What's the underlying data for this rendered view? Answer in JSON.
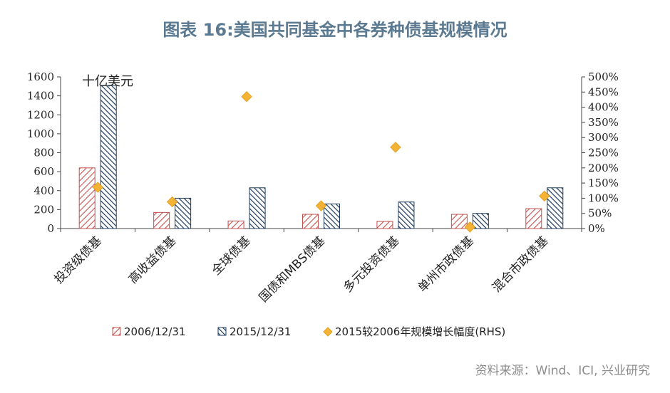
{
  "title": "图表 16:美国共同基金中各券种债基规模情况",
  "source": "资料来源：Wind、ICI, 兴业研究",
  "colors": {
    "title": "#5b7a91",
    "series_2006": "#c0504d",
    "series_2015": "#1f3b5c",
    "series_rhs": "#f5b335",
    "axis": "#444444"
  },
  "chart_data": {
    "type": "bar",
    "unit_label": "十亿美元",
    "categories": [
      "投资级债基",
      "高收益债基",
      "全球债基",
      "国债和MBS债基",
      "多元投资债基",
      "单州市政债基",
      "混合市政债基"
    ],
    "series": [
      {
        "name": "2006/12/31",
        "kind": "bar",
        "pattern": "diagonal-red",
        "values": [
          640,
          170,
          80,
          150,
          75,
          150,
          210
        ]
      },
      {
        "name": "2015/12/31",
        "kind": "bar",
        "pattern": "diagonal-navy",
        "values": [
          1510,
          320,
          430,
          260,
          280,
          160,
          430
        ]
      },
      {
        "name": "2015较2006年规模增长幅度(RHS)",
        "kind": "marker",
        "axis": "right",
        "values": [
          1.36,
          0.88,
          4.35,
          0.75,
          2.68,
          0.05,
          1.07
        ]
      }
    ],
    "y_left": {
      "min": 0,
      "max": 1600,
      "ticks": [
        "0",
        "200",
        "400",
        "600",
        "800",
        "1000",
        "1200",
        "1400",
        "1600"
      ]
    },
    "y_right": {
      "min": 0,
      "max": 5,
      "ticks": [
        "0%",
        "50%",
        "100%",
        "150%",
        "200%",
        "250%",
        "300%",
        "350%",
        "400%",
        "450%",
        "500%"
      ]
    },
    "grid": false,
    "legend_position": "bottom"
  }
}
